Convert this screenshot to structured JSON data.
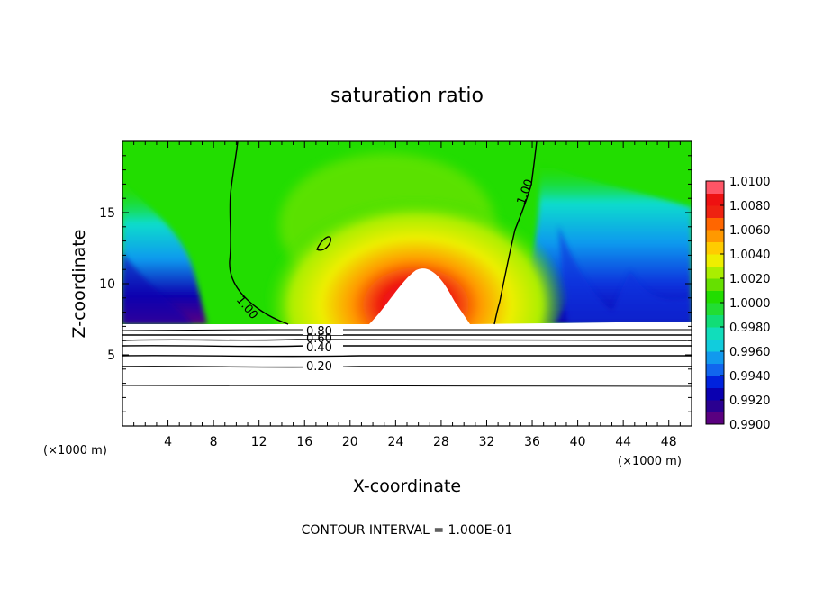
{
  "chart_data": {
    "type": "heatmap",
    "title": "saturation ratio",
    "xlabel": "X-coordinate",
    "ylabel": "Z-coordinate",
    "x_unit": "(×1000 m)",
    "z_unit": "(×1000 m)",
    "footer": "CONTOUR INTERVAL = 1.000E-01",
    "xlim": [
      0,
      50
    ],
    "ylim": [
      0,
      20
    ],
    "x_ticks": [
      "4",
      "8",
      "12",
      "16",
      "20",
      "24",
      "28",
      "32",
      "36",
      "40",
      "44",
      "48"
    ],
    "y_ticks": [
      "5",
      "10",
      "15"
    ],
    "colorbar_labels": [
      "1.0100",
      "1.0080",
      "1.0060",
      "1.0040",
      "1.0020",
      "1.0000",
      "0.9980",
      "0.9960",
      "0.9940",
      "0.9920",
      "0.9900"
    ],
    "colorbar_range": [
      0.99,
      1.01
    ],
    "contour_labels": [
      "1.00",
      "1.00",
      "0.80",
      "0.60",
      "0.40",
      "0.20"
    ],
    "colors": {
      "green": "#22dd00",
      "yellow": "#eeee00",
      "orange": "#ff9900",
      "red": "#ee1111",
      "cyan": "#11ddcc",
      "blue": "#1177ee",
      "navy": "#0a00b0",
      "purple": "#5a0080"
    }
  }
}
